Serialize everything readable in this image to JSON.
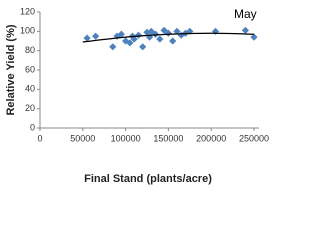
{
  "chart_data": {
    "type": "scatter",
    "title": "May",
    "x_label": "Final Stand (plants/acre)",
    "y_label": "Relative Yield (%)",
    "xlim": [
      0,
      250000
    ],
    "xticks": [
      0,
      50000,
      100000,
      150000,
      200000,
      250000
    ],
    "ylim": [
      0,
      120
    ],
    "yticks": [
      0,
      20,
      40,
      60,
      80,
      100,
      120
    ],
    "color": "#4f81bd",
    "x": [
      55000,
      65000,
      85000,
      90000,
      95000,
      100000,
      105000,
      108000,
      110000,
      115000,
      120000,
      125000,
      128000,
      130000,
      135000,
      140000,
      145000,
      150000,
      155000,
      160000,
      165000,
      170000,
      175000,
      205000,
      240000,
      250000
    ],
    "values": [
      93,
      95,
      84,
      95,
      97,
      90,
      88,
      95,
      92,
      96,
      84,
      99,
      94,
      100,
      97,
      92,
      101,
      98,
      90,
      100,
      96,
      98,
      100,
      100,
      101,
      94
    ],
    "trendline": {
      "color": "#000000",
      "x": [
        50000,
        100000,
        150000,
        200000,
        250000
      ],
      "values": [
        89,
        94,
        97,
        98,
        97
      ]
    }
  }
}
